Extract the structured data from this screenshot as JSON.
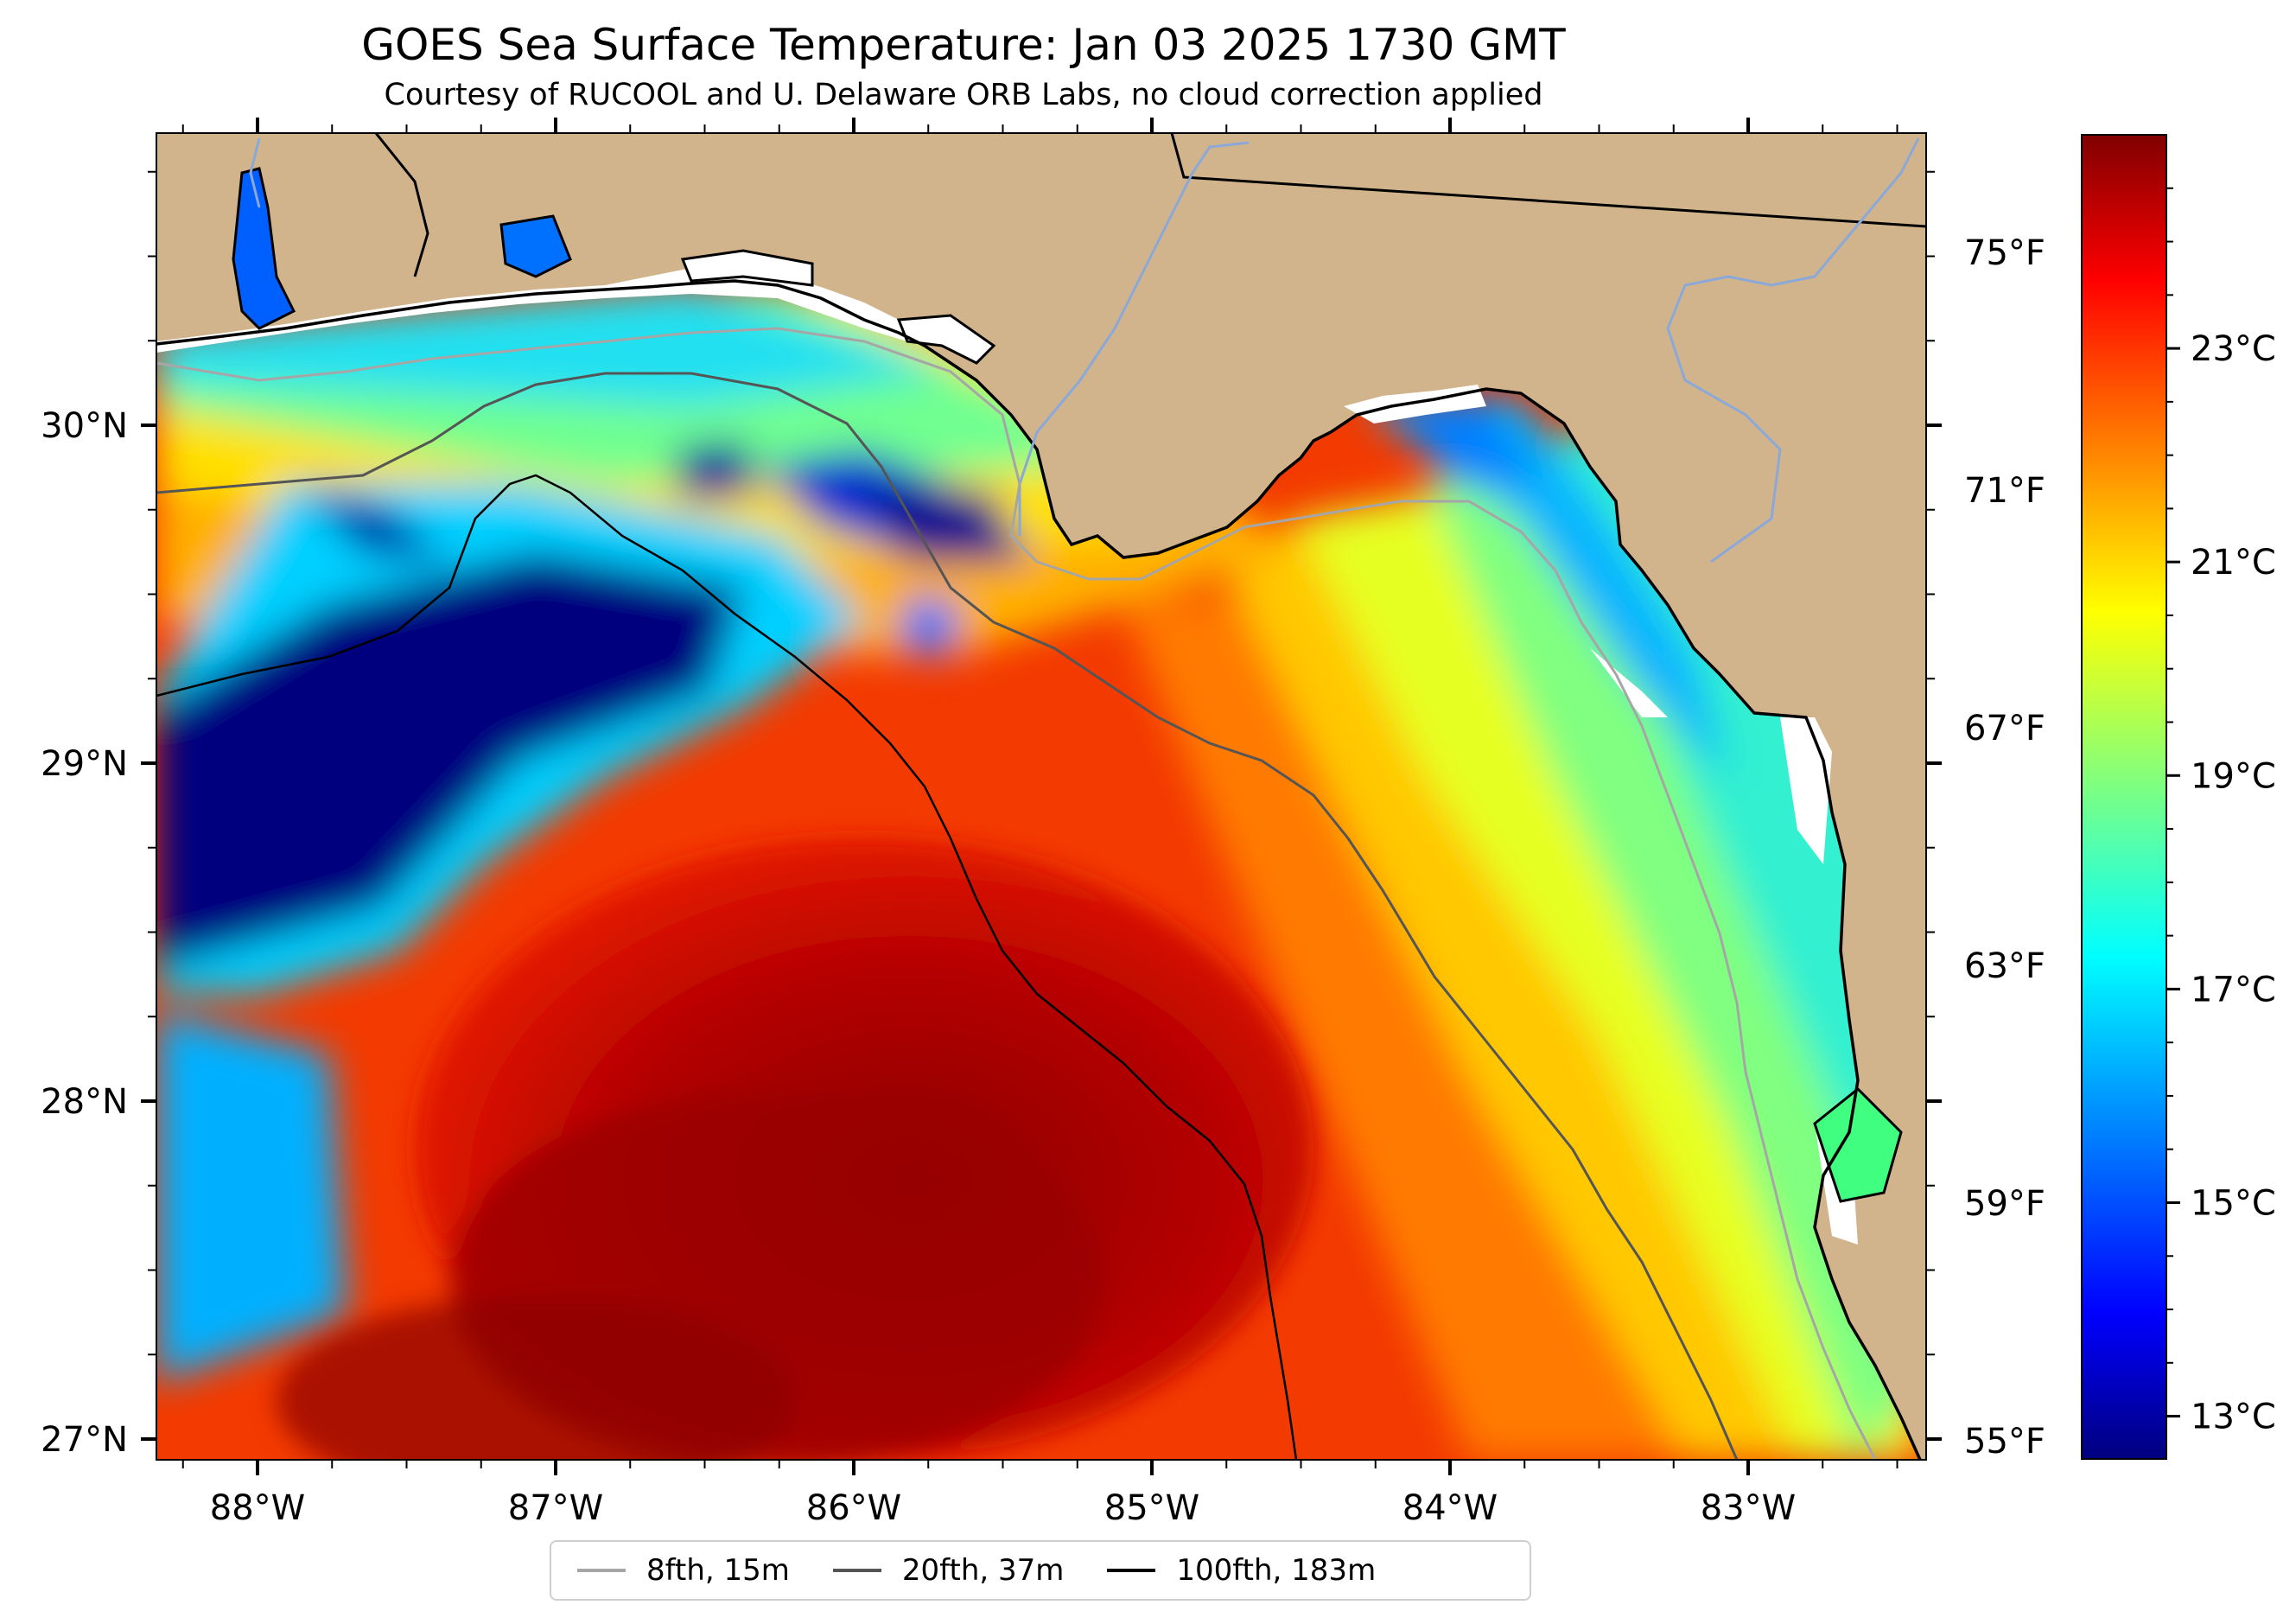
{
  "title": "GOES Sea Surface Temperature: Jan 03 2025 1730 GMT",
  "subtitle": "Courtesy of RUCOOL and U. Delaware ORB Labs, no cloud correction applied",
  "map": {
    "lon_range": [
      -88.33,
      -82.38
    ],
    "lat_range": [
      26.94,
      30.85
    ],
    "land_color": "#d2b48c",
    "lat_labels": [
      "30°N",
      "29°N",
      "28°N",
      "27°N"
    ],
    "lon_labels": [
      "88°W",
      "87°W",
      "86°W",
      "85°W",
      "84°W",
      "83°W"
    ],
    "fahrenheit_labels": [
      "75°F",
      "71°F",
      "67°F",
      "63°F",
      "59°F",
      "55°F"
    ]
  },
  "colorbar": {
    "colormap": "jet",
    "range_c": [
      12.6,
      25.0
    ],
    "ticks": [
      {
        "value": 23,
        "label": "23°C"
      },
      {
        "value": 21,
        "label": "21°C"
      },
      {
        "value": 19,
        "label": "19°C"
      },
      {
        "value": 17,
        "label": "17°C"
      },
      {
        "value": 15,
        "label": "15°C"
      },
      {
        "value": 13,
        "label": "13°C"
      }
    ]
  },
  "legend": {
    "items": [
      {
        "label": "8fth, 15m",
        "color": "#a6a6a6"
      },
      {
        "label": "20fth, 37m",
        "color": "#555555"
      },
      {
        "label": "100fth, 183m",
        "color": "#000000"
      }
    ]
  }
}
